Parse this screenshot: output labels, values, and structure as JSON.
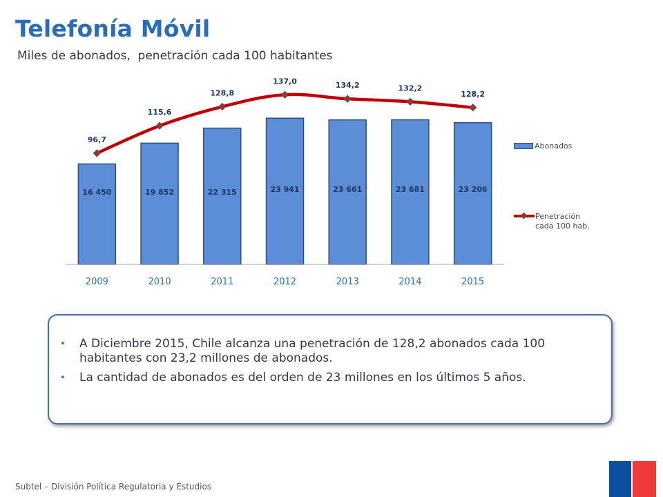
{
  "header": {
    "title": "Telefonía Móvil",
    "subtitle": "Miles de abonados,  penetración cada 100 habitantes"
  },
  "chart_data": {
    "type": "bar",
    "categories": [
      "2009",
      "2010",
      "2011",
      "2012",
      "2013",
      "2014",
      "2015"
    ],
    "series": [
      {
        "name": "Abonados",
        "type": "bar",
        "values": [
          16450,
          19852,
          22315,
          23941,
          23661,
          23681,
          23206
        ],
        "labels": [
          "16 450",
          "19 852",
          "22 315",
          "23 941",
          "23 661",
          "23 681",
          "23 206"
        ],
        "color": "#5b8ed6"
      },
      {
        "name": "Penetración cada 100 hab.",
        "type": "line",
        "values": [
          96.7,
          115.6,
          128.8,
          137.0,
          134.2,
          132.2,
          128.2
        ],
        "labels": [
          "96,7",
          "115,6",
          "128,8",
          "137,0",
          "134,2",
          "132,2",
          "128,2"
        ],
        "color": "#c00000",
        "marker_color": "#8b3a3a"
      }
    ],
    "legend": {
      "position": "right",
      "bar_label": "Abonados",
      "line_label_1": "Penetración",
      "line_label_2": "cada 100 hab."
    },
    "grid": false,
    "xlabel": "",
    "ylabel": ""
  },
  "info": {
    "bullets": [
      "A Diciembre 2015, Chile alcanza una penetración de 128,2 abonados cada 100 habitantes con 23,2 millones de abonados.",
      "La cantidad de abonados es del orden de 23 millones en los últimos 5 años."
    ]
  },
  "footer": {
    "text": "Subtel – División Política Regulatoria y Estudios"
  },
  "colors": {
    "title": "#2a6ebb",
    "bar": "#5b8ed6",
    "bar_border": "#2d4f7e",
    "line": "#c00000",
    "data_label": "#1f3864",
    "box_border": "#4a6fa5",
    "logo_blue": "#0c4fa0",
    "logo_red": "#ef3b39"
  }
}
